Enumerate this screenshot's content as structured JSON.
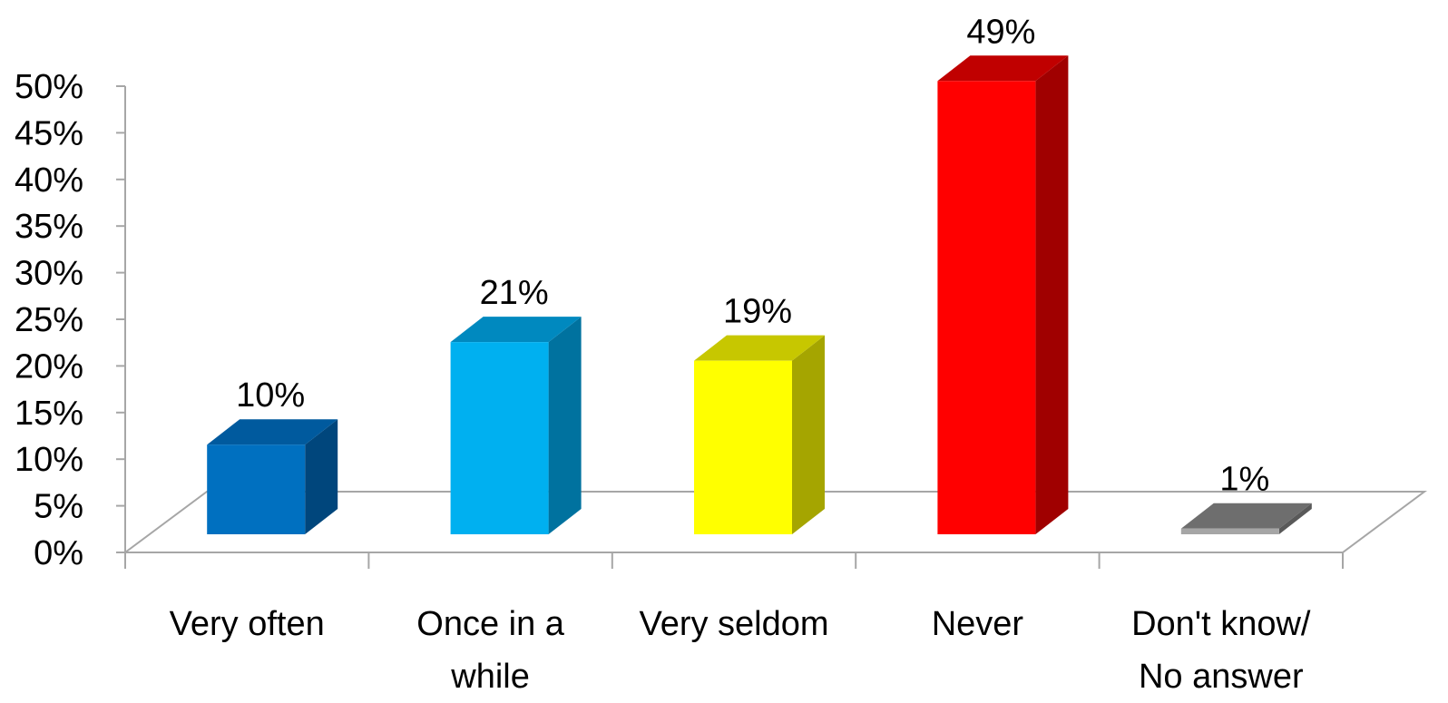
{
  "chart_data": {
    "type": "bar",
    "style": "3d-column",
    "title": "",
    "xlabel": "",
    "ylabel": "",
    "categories": [
      "Very often",
      "Once in a while",
      "Very seldom",
      "Never",
      "Don't know/ No answer"
    ],
    "category_lines": [
      [
        "Very often"
      ],
      [
        "Once in a",
        "while"
      ],
      [
        "Very seldom"
      ],
      [
        "Never"
      ],
      [
        "Don't know/",
        "No answer"
      ]
    ],
    "values": [
      10,
      21,
      19,
      49,
      1
    ],
    "value_labels": [
      "10%",
      "21%",
      "19%",
      "49%",
      "1%"
    ],
    "colors": [
      {
        "front": "#0070c0",
        "top": "#005a9e",
        "side": "#00467c"
      },
      {
        "front": "#00b0f0",
        "top": "#0089bf",
        "side": "#00729f"
      },
      {
        "front": "#ffff00",
        "top": "#c7c700",
        "side": "#a5a500"
      },
      {
        "front": "#ff0000",
        "top": "#c00000",
        "side": "#a00000"
      },
      {
        "front": "#a6a6a6",
        "top": "#6e6e6e",
        "side": "#595959"
      }
    ],
    "ylim": [
      0,
      50
    ],
    "yticks": [
      0,
      5,
      10,
      15,
      20,
      25,
      30,
      35,
      40,
      45,
      50
    ],
    "ytick_labels": [
      "0%",
      "5%",
      "10%",
      "15%",
      "20%",
      "25%",
      "30%",
      "35%",
      "40%",
      "45%",
      "50%"
    ],
    "grid": false,
    "legend": "none",
    "axis_color": "#a6a6a6"
  }
}
